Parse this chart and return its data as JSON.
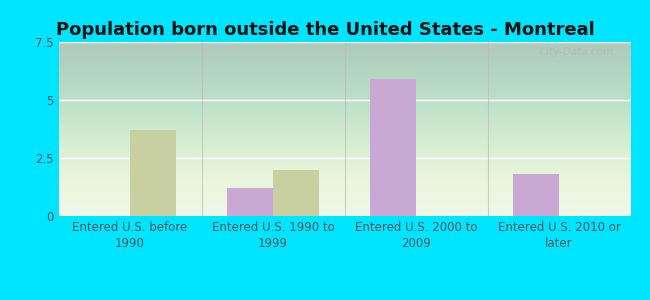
{
  "title": "Population born outside the United States - Montreal",
  "categories": [
    "Entered U.S. before\n1990",
    "Entered U.S. 1990 to\n1999",
    "Entered U.S. 2000 to\n2009",
    "Entered U.S. 2010 or\nlater"
  ],
  "native_values": [
    0,
    1.2,
    5.9,
    1.8
  ],
  "foreignborn_values": [
    3.7,
    2.0,
    0,
    0
  ],
  "native_color": "#c9a8d4",
  "foreignborn_color": "#c8cfa0",
  "ylim": [
    0,
    7.5
  ],
  "yticks": [
    0,
    2.5,
    5,
    7.5
  ],
  "outer_background": "#00e5ff",
  "grid_color": "#ffffff",
  "title_fontsize": 13,
  "tick_fontsize": 8.5,
  "legend_fontsize": 9,
  "bar_width": 0.32,
  "watermark": "City-Data.com"
}
